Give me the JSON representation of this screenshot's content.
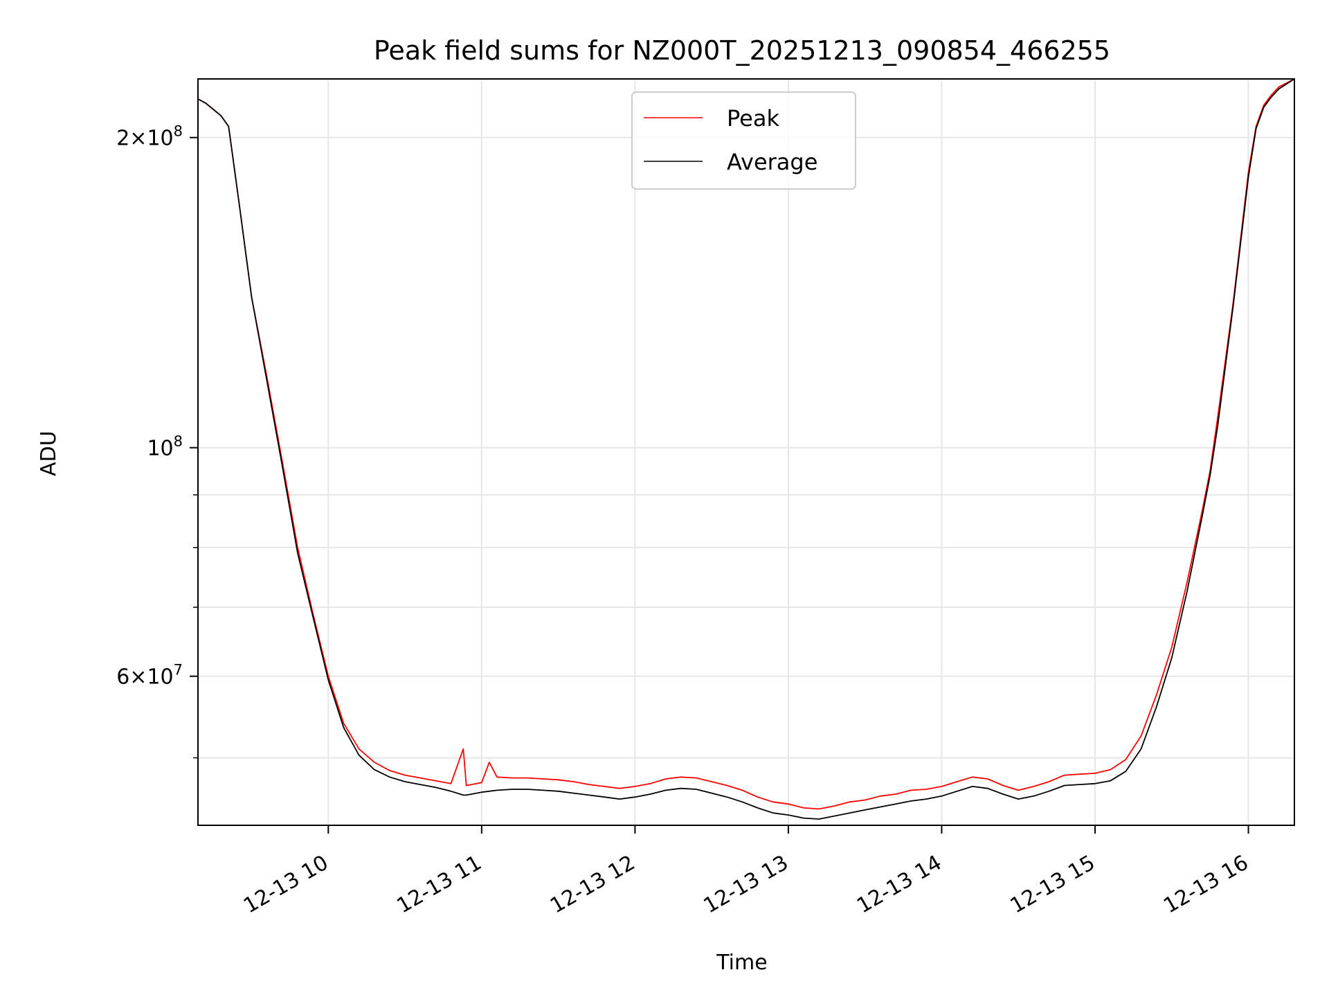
{
  "chart_data": {
    "type": "line",
    "title": "Peak field sums for NZ000T_20251213_090854_466255",
    "xlabel": "Time",
    "ylabel": "ADU",
    "yscale": "log",
    "grid": true,
    "legend_position": "top-center",
    "xlim": [
      9.15,
      16.3
    ],
    "ylim": [
      43000000,
      228000000
    ],
    "x_ticks": [
      {
        "value": 10,
        "label": "12-13 10"
      },
      {
        "value": 11,
        "label": "12-13 11"
      },
      {
        "value": 12,
        "label": "12-13 12"
      },
      {
        "value": 13,
        "label": "12-13 13"
      },
      {
        "value": 14,
        "label": "12-13 14"
      },
      {
        "value": 15,
        "label": "12-13 15"
      },
      {
        "value": 16,
        "label": "12-13 16"
      }
    ],
    "y_major_ticks": [
      {
        "value": 100000000,
        "base": "10",
        "exp": "8"
      },
      {
        "value": 200000000,
        "base": "2×10",
        "exp": "8"
      },
      {
        "value": 60000000,
        "base": "6×10",
        "exp": "7"
      }
    ],
    "y_minor_ticks": [
      50000000,
      70000000,
      80000000,
      90000000
    ],
    "series": [
      {
        "name": "Peak",
        "color": "#ff0000",
        "x": [
          9.15,
          9.2,
          9.25,
          9.3,
          9.35,
          9.42,
          9.5,
          9.6,
          9.7,
          9.8,
          9.9,
          10.0,
          10.1,
          10.2,
          10.3,
          10.4,
          10.5,
          10.6,
          10.7,
          10.8,
          10.88,
          10.9,
          11.0,
          11.05,
          11.1,
          11.2,
          11.3,
          11.4,
          11.5,
          11.6,
          11.7,
          11.8,
          11.9,
          12.0,
          12.1,
          12.2,
          12.3,
          12.4,
          12.5,
          12.6,
          12.7,
          12.8,
          12.9,
          13.0,
          13.1,
          13.2,
          13.3,
          13.4,
          13.5,
          13.6,
          13.7,
          13.8,
          13.9,
          14.0,
          14.1,
          14.2,
          14.3,
          14.4,
          14.5,
          14.6,
          14.7,
          14.8,
          14.9,
          15.0,
          15.1,
          15.2,
          15.3,
          15.4,
          15.5,
          15.6,
          15.7,
          15.75,
          15.8,
          15.9,
          16.0,
          16.05,
          16.1,
          16.15,
          16.2,
          16.3
        ],
        "y": [
          218000000,
          216000000,
          213000000,
          210000000,
          205000000,
          172000000,
          140000000,
          117000000,
          97000000,
          80000000,
          69000000,
          60000000,
          54000000,
          51000000,
          49500000,
          48600000,
          48100000,
          47800000,
          47500000,
          47200000,
          51000000,
          47000000,
          47300000,
          49500000,
          47900000,
          47800000,
          47800000,
          47700000,
          47600000,
          47400000,
          47100000,
          46900000,
          46700000,
          46900000,
          47200000,
          47700000,
          47900000,
          47800000,
          47400000,
          47000000,
          46500000,
          45800000,
          45300000,
          45100000,
          44700000,
          44600000,
          44900000,
          45300000,
          45500000,
          45900000,
          46100000,
          46500000,
          46600000,
          46900000,
          47400000,
          47900000,
          47700000,
          47000000,
          46500000,
          46900000,
          47400000,
          48100000,
          48200000,
          48300000,
          48700000,
          49800000,
          52500000,
          57500000,
          64000000,
          74000000,
          87000000,
          95000000,
          107000000,
          138000000,
          185000000,
          205000000,
          215000000,
          220000000,
          224000000,
          228000000
        ]
      },
      {
        "name": "Average",
        "color": "#000000",
        "x": [
          9.15,
          9.2,
          9.25,
          9.3,
          9.35,
          9.42,
          9.5,
          9.6,
          9.7,
          9.8,
          9.9,
          10.0,
          10.1,
          10.2,
          10.3,
          10.4,
          10.5,
          10.6,
          10.7,
          10.8,
          10.88,
          10.9,
          11.0,
          11.05,
          11.1,
          11.2,
          11.3,
          11.4,
          11.5,
          11.6,
          11.7,
          11.8,
          11.9,
          12.0,
          12.1,
          12.2,
          12.3,
          12.4,
          12.5,
          12.6,
          12.7,
          12.8,
          12.9,
          13.0,
          13.1,
          13.2,
          13.3,
          13.4,
          13.5,
          13.6,
          13.7,
          13.8,
          13.9,
          14.0,
          14.1,
          14.2,
          14.3,
          14.4,
          14.5,
          14.6,
          14.7,
          14.8,
          14.9,
          15.0,
          15.1,
          15.2,
          15.3,
          15.4,
          15.5,
          15.6,
          15.7,
          15.75,
          15.8,
          15.9,
          16.0,
          16.05,
          16.1,
          16.15,
          16.2,
          16.3
        ],
        "y": [
          218000000,
          216000000,
          213000000,
          210000000,
          205000000,
          172000000,
          140000000,
          116000000,
          96000000,
          79000000,
          68500000,
          59500000,
          53500000,
          50300000,
          48700000,
          47900000,
          47400000,
          47100000,
          46800000,
          46400000,
          46000000,
          46000000,
          46300000,
          46400000,
          46500000,
          46600000,
          46600000,
          46500000,
          46400000,
          46200000,
          46000000,
          45800000,
          45600000,
          45800000,
          46100000,
          46500000,
          46700000,
          46600000,
          46200000,
          45800000,
          45300000,
          44700000,
          44200000,
          44000000,
          43700000,
          43600000,
          43900000,
          44200000,
          44500000,
          44800000,
          45100000,
          45400000,
          45600000,
          45900000,
          46400000,
          46900000,
          46700000,
          46100000,
          45600000,
          45900000,
          46400000,
          47000000,
          47100000,
          47200000,
          47500000,
          48500000,
          51000000,
          56000000,
          62500000,
          72500000,
          86000000,
          94000000,
          105000000,
          137000000,
          183000000,
          204000000,
          214000000,
          219000000,
          223000000,
          228000000
        ]
      }
    ]
  }
}
